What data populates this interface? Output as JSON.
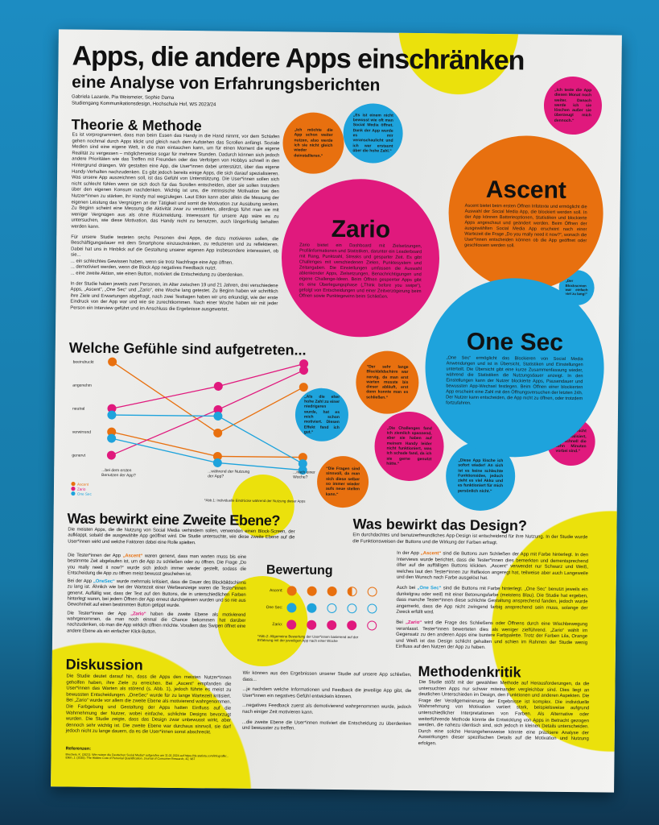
{
  "colors": {
    "ascent": "#e8700f",
    "zario": "#e0197d",
    "one_sec": "#1ea3dc",
    "yellow": "#ebe10c",
    "background": "#1b83b6"
  },
  "header": {
    "title": "Apps, die andere Apps einschränken",
    "subtitle": "eine Analyse von Erfahrungsberichten",
    "authors": "Gabriela Lazarde, Pia Weismeier, Sophie Dama",
    "institution": "Studiengang Kommunikationsdesign, Hochschule Hof, WS 2023/24"
  },
  "theorie": {
    "heading": "Theorie & Methode",
    "p1": "Es ist vorprogrammiert, dass man beim Essen das Handy in die Hand nimmt, vor dem Schlafen gehen nochmal durch Apps klickt und gleich nach dem Aufstehen das Scrollen anfängt. Soziale Medien sind eine eigene Welt, in die man eintauchen kann, um für einen Moment die eigene Realität zu vergessen – möglicherweise sogar für mehrere Stunden. Dadurch können sich jedoch andere Prioritäten wie das Treffen mit Freunden oder das Verfolgen von Hobbys schnell in den Hintergrund drängen. Wir gestalten eine App, die User*innen dabei unterstützt, über das eigene Handy-Verhalten nachzudenken. Es gibt jedoch bereits einige Apps, die sich darauf spezialisieren. Was unsere App auszeichnen soll, ist das Gefühl von Unterstützung. Die User*innen sollen sich nicht schlecht fühlen wenn sie sich doch für das Scrollen entscheiden, aber sie sollen trotzdem über den eigenen Konsum nachdenken. Wichtig ist uns, die intrinsische Motivation bei den Nutzer*innen zu stärken, ihr Handy mal wegzulegen. Laut Etkin kann aber allein die Messung der eigenen Leistung das Vergnügen an der Tätigkeit und somit die Motivation zur Ausübung senken. Zu Beginn scheint eine Messung die Aktivität zwar zu verstärken, allerdings führt man sie mit weniger Vergnügen aus als ohne Rückmeldung. Interessant für unsere App wäre es zu untersuchen, wie diese Motivation, das Handy nicht zu benutzen, auch längerfristig behalten werden kann.",
    "p2": "Für unsere Studie testeten sechs Personen drei Apps, die dazu motivieren sollen, die Beschäftigungsdauer mit dem Smartphone einzuschränken, zu reduzieren und zu reflektieren. Dabei hat uns in Hinblick auf die Gestaltung unserer eigenen App insbesondere interessiert, ob sie...",
    "bullets": [
      "... ein schlechtes Gewissen haben, wenn sie trotz Nachfrage eine App öffnen.",
      "... demotiviert werden, wenn die Block App negatives Feedback nutzt.",
      "... eine zweite Aktion, wie einen Button, motiviert die Entscheidung zu überdenken."
    ],
    "p3": "In der Studie haben jeweils zwei Personen, im Alter zwischen 19 und 21 Jahren, drei verschiedene Apps, „Ascent“, „One Sec“ und „Zario“, eine Woche lang getestet. Zu Beginn haben wir schriftlich ihre Ziele und Erwartungen abgefragt, nach zwei Testtagen haben wir uns erkundigt, wie der erste Eindruck von der App war und wie sie zurechtkommen. Nach einer Woche haben wir mit jeder Person ein Interview geführt und im Anschluss die Ergebnisse ausgewertet."
  },
  "chart_data": {
    "type": "line",
    "title": "Welche Gefühle sind aufgetreten...",
    "categories": [
      "...bei dem ersten Benutzen der App?",
      "...während der Nutzung der App?",
      "...nach einer Woche?"
    ],
    "y_levels": [
      "beeindruckt",
      "angenehm",
      "neutral",
      "verwirrend",
      "genervt"
    ],
    "series": [
      {
        "name": "Ascent",
        "color": "#e8700f",
        "values": [
          "beeindruckt",
          "verwirrend",
          "angenehm"
        ]
      },
      {
        "name": "Ascent",
        "color": "#e8700f",
        "values": [
          "verwirrend",
          "genervt",
          "genervt"
        ]
      },
      {
        "name": "Zario",
        "color": "#e0197d",
        "values": [
          "neutral",
          "angenehm",
          "beeindruckt"
        ]
      },
      {
        "name": "Zario",
        "color": "#e0197d",
        "values": [
          "genervt",
          "neutral",
          "beeindruckt"
        ]
      },
      {
        "name": "One Sec",
        "color": "#1ea3dc",
        "values": [
          "neutral",
          "neutral",
          "genervt"
        ]
      },
      {
        "name": "One Sec",
        "color": "#1ea3dc",
        "values": [
          "verwirrend",
          "genervt",
          "genervt"
        ]
      }
    ],
    "legend": [
      {
        "name": "Ascent",
        "color": "#e8700f"
      },
      {
        "name": "Zario",
        "color": "#e0197d"
      },
      {
        "name": "One Sec",
        "color": "#1ea3dc"
      }
    ],
    "legend_placement": "bottom-left",
    "caption": "*Abb.1: Individuelle Eindrücke während der Nutzung dieser Apps"
  },
  "apps": {
    "zario": {
      "name": "Zario",
      "text": "Zario bietet ein Dashboard mit Zielsetzungen, Profilinformationen und Statistiken, darunter ein Leaderboard mit Rang, Punktzahl, Streaks und gesparter Zeit. Es gibt Challenges mit verschiedenen Zielen, Punktesystem und Zeitangaben. Die Einstellungen umfassen die Auswahl ablenkender Apps, Zielsetzungen, Benachrichtigungen und eigene Challenge-Ideen. Beim Öffnen gesperrter Apps gibt es eine Überlegungsphase („Think before you swipe“), gefolgt von Entscheidungen und einer Zeitverzögerung beim Öffnen sowie Punktegewinn beim Schließen."
    },
    "ascent": {
      "name": "Ascent",
      "text": "Ascent bietet beim ersten Öffnen Infotexte und ermöglicht die Auswahl der Social Media App, die blockiert werden soll. In der App können Batterieoptionen, Statistiken und blockierte Apps angeschaut und geändert werden. Beim Öffnen der ausgewählten Social Media App erscheint nach einer Wartezeit die Frage „Do you really need it now?“, wonach die User*innen entscheiden können ob die App geöffnet oder geschlossen werden soll."
    },
    "one_sec": {
      "name": "One Sec",
      "text": "„One Sec“ ermöglicht das Blockieren von Social Media Anwendungen und ist in Übersicht, Statistiken und Einstellungen unterteilt. Die Übersicht gibt eine kurze Zusammenfassung wieder, während die Statistiken die Nutzungsdauer anzeigt. In den Einstellungen kann der Nutzer blockierte Apps, Pausendauer und bewussten App-Wechsel festlegen. Beim Öffnen einer blockierten App erscheint eine Zahl mit den Öffnungsversuchen der letzten 24h. Der Nutzer kann entscheiden, die App nicht zu öffnen, oder trotzdem fortzufahren."
    }
  },
  "quotes": [
    "„Ich möchte die App schon weiter nutzen, also werde ich sie nicht gleich wieder deinstallieren.“",
    "„Es ist einem nicht bewusst wie oft man Social Media öffnet. Dank der App wurde es mir veranschaulicht und ich war erstaunt über die hohe Zahl.“",
    "„Ich teste die App diesen Monat noch weiter. Danach werde ich sie löschen außer sie überzeugt mich dennoch.“",
    "„Der Blockscreen war einfach viel zu lang!“",
    "“Der sehr lange Blockbildschirm war nervig, da man erst warten musste bis dieser abläuft, erst dann konnte man es schließen.“",
    "„Als die eher hohe Zahl zu einer niedrigeren wurde, hat es mich schon motiviert. Diesen Effekt fand ich gut.“",
    "„Die Challenges fand ich ziemlich spannend, aber sie haben auf meinem Handy leider nicht funktioniert, was ich schade fand, da ich sie gerne genutzt hätte.“",
    "“Die Fragen sind sinnvoll, da man sich diese selber so immer wieder aufs neue stellen kann.“",
    "„Ich habe nicht so realisiert, wie schnell die zehn Minuten vorbei sind.“",
    "„Diese App lösche ich sofort wieder! An sich ist es keine schlechte Funktionsidee, jedoch zieht es viel Akku und es funktioniert für mich persönlich nicht.“"
  ],
  "zweite_ebene": {
    "heading": "Was bewirkt eine Zweite Ebene?",
    "intro": "Die meisten Apps, die die Nutzung von Social Media verhindern sollen, verwenden einen Block-Screen, der aufklappt, sobald die ausgewählte App geöffnet wird. Die Studie untersuchte, wie diese zweite Ebene auf die User*innen wirkt und welche Faktoren dabei eine Rolle spielten.",
    "ascent_pre": "Die Tester*innen der App ",
    "ascent_name": "„Ascent“",
    "ascent_post": " waren genervt, dass man warten muss bis eine bestimmte Zeit abgelaufen ist, um die App zu schließen oder zu öffnen. Die Frage „Do you really need it now?“ wurde sich jedoch immer wieder gestellt, sodass die Entscheidung die App zu öffnen meist bewusst geschehen ist.",
    "onesec_pre": "Bei der App ",
    "onesec_name": "„OneSec“",
    "onesec_post": " wurde mehrmals kritisiert, dass die Dauer des Blockbildschirms zu lang ist. Ähnlich wie bei der Wartezeit einer Werbeanzeige waren die Tester*innen genervt. Auffällig war, dass der Text auf den Buttons, die in unterschiedlichen Farben hinterlegt waren, bei jedem Öffnen der App erneut durchgelesen wurden und so nie aus Gewohnheit auf einen bestimmten Button getippt wurde.",
    "zario_pre": "Die Tester*innen der App ",
    "zario_name": "„Zario“",
    "zario_post": " haben die zweite Ebene als motivierend wahrgenommen, da man noch einmal die Chance bekommen hat darüber nachzudenken, ob man die App wirklich öffnen möchte. Vorallem das Swipen öffnet eine andere Ebene als ein einfacher Klick-Button."
  },
  "bewertung": {
    "heading": "Bewertung",
    "max": 5,
    "rows": [
      {
        "label": "Ascent:",
        "score": 3.5,
        "color": "#e8700f"
      },
      {
        "label": "One Sec:",
        "score": 2,
        "color": "#1ea3dc"
      },
      {
        "label": "Zario:",
        "score": 4,
        "color": "#e0197d"
      }
    ],
    "caption": "*Abb.2: Allgemeine Bewertung der User*innen basierend auf der Erfahrung mit der jeweiligen App nach einer Woche"
  },
  "design": {
    "heading": "Was bewirkt das Design?",
    "intro": "Ein durchdachtes und benutzerfreundliches App-Design ist entscheidend für ihre Nutzung. In der Studie wurde die Funktionsweisen der Buttons und die Wirkung der Farben erfragt.",
    "ascent_pre": "In der App ",
    "ascent_name": "„Ascent“",
    "ascent_post": " sind die Buttons zum Schließen der App mit Farbe hinterlegt. In den Interviews wurde berichtet, dass die Tester*innen dies bemerkten und dementsprechend öfter auf die auffälligen Buttons klickten. „Ascent“ verwendet nur Schwarz und Weiß, welches laut den Tester*innen zur Reflexion angeregt hat, teilweise aber auch Langeweile und den Wunsch nach Farbe ausgelöst hat.",
    "onesec_pre": "Auch bei ",
    "onesec_name": "„One Sec“",
    "onesec_post": " sind die Buttons mit Farbe hinterlegt. „One Sec“ benutzt jeweils ein dunkelgrau oder weiß mit einer Betonungsfarbe (meistens Blau). Die Studie hat ergeben, dass manche Tester*innen diese schlichte Gestaltung ansprechend fanden, jedoch wurde angemerkt, dass die App nicht zwingend farbig ansprechend sein muss, solange der Zweck erfüllt wird.",
    "zario_pre": "Bei ",
    "zario_name": "„Zario“",
    "zario_post": " wird die Frage des Schließens oder Öffnens durch eine Wischbewegung veranlasst. Tester*innen bewerteten dies als weniger zielführend. „Zario“ wählt im Gegensatz zu den anderen Apps eine buntere Farbpalette. Trotz der Farben Lila, Orange und Weiß ist das Design schlicht gehalten und schien im Rahmen der Studie wenig Einfluss auf den Nutzen der App zu haben."
  },
  "diskussion": {
    "heading": "Diskussion",
    "text": "Die Studie deutet darauf hin, dass die Apps den meisten Nutzer*innen geholfen haben, ihre Ziele zu erreichen. Bei „Ascent“ empfanden die User*innen das Warten als störend (s. Abb. 1), jedoch führte es meist zu bewussten Entscheidungen. „OneSec“ wurde für zu lange Wartezeit kritisiert. Bei „Zario“ wurde vor allem die zweite Ebene als motivierend wahrgenommen. Die Farbgebung und Gestaltung der Apps hatten Einfluss auf die Wahrnehmung der Nutzer, wobei einfache, schlichte Designs bevorzugt wurden. Die Studie zeigte, dass das Design zwar unbewusst wirkt, aber dennoch sehr wichtig ist. Die zweite Ebene war durchaus sinnvoll, sie darf jedoch nicht zu lange dauern, da es die User*innen sonst abschreckt.",
    "ref_heading": "Referenzen:",
    "refs": "Brecheis, K. (2021). Wie nutzen die Deutschen Social Media? aufgerufen am 11.01.2024 auf https://de.statista.com/infografik/... Etkin, J. (2016). The Hidden Cost of Personal Quantification. Journal of Consumer Research, 42, 967"
  },
  "schluss": {
    "intro": "Wir können aus den Ergebnissen unserer Studie auf unsere App schließen, dass...",
    "points": [
      "...je nachdem welche Informationen und Feedback die jeweilige App gibt, die User*innen ein negatives Gefühl entwickeln können.",
      "...negatives Feedback zuerst als demotivierend wahrgenommen wurde, jedoch nach einiger Zeit motivieren kann.",
      "...die zweite Ebene die User*innen motiviert die Entscheidung zu überdenken und bewusster zu treffen."
    ]
  },
  "methodenkritik": {
    "heading": "Methodenkritik",
    "text": "Die Studie stößt mit der gewählten Methode auf Herausforderungen, da die untersuchten Apps nur schwer miteinander vergleichbar sind. Dies liegt an deutlichen Unterschieden im Design, den Funktionen und anderen Aspekten. Die Frage der Verallgemeinerung der Ergebnisse ist komplex. Die individuelle Wahrnehmung von Motivation variiert stark, beispielsweise aufgrund unterschiedlicher Interpretationen von Farben. Als Alternative oder weiterführende Methode könnte die Entwicklung von Apps in Betracht gezogen werden, die nahezu identisch sind, sich jedoch in kleinen Details unterscheiden. Durch eine solche Herangehensweise könnte eine präzisere Analyse der Auswirkungen dieser spezifischen Details auf die Motivation und Nutzung erfolgen."
  }
}
